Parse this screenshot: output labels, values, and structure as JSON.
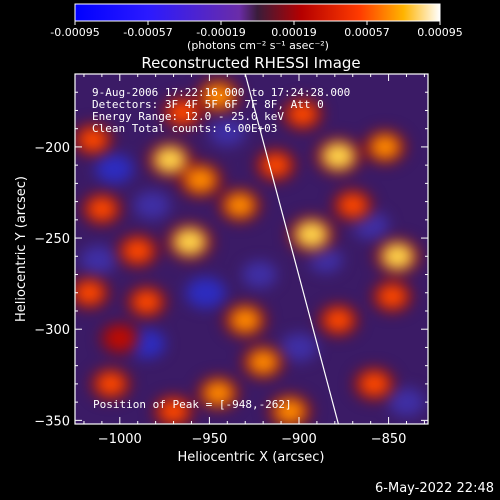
{
  "chart_data": {
    "type": "heatmap",
    "title": "Reconstructed RHESSI Image",
    "xlabel": "Heliocentric X (arcsec)",
    "ylabel": "Heliocentric Y (arcsec)",
    "xlim": [
      -1025,
      -828
    ],
    "ylim": [
      -352,
      -160
    ],
    "xticks": [
      -1000,
      -950,
      -900,
      -850
    ],
    "yticks": [
      -200,
      -250,
      -300,
      -350
    ],
    "colorbar": {
      "ticks": [
        "-0.00095",
        "-0.00057",
        "-0.00019",
        "0.00019",
        "0.00057",
        "0.00095"
      ],
      "unit_label": "(photons cm⁻² s⁻¹ asec⁻²)",
      "range": [
        -0.00095,
        0.00095
      ]
    },
    "annotations": [
      " 9-Aug-2006 17:22:16.000 to 17:24:28.000",
      "Detectors: 3F 4F 5F 6F 7F 8F, Att 0",
      "Energy Range: 12.0 - 25.0 keV",
      "Clean    Total counts: 6.00E+03"
    ],
    "peak_label": "Position of Peak = [-948,-262]",
    "limb_line": {
      "x": [
        -930,
        -878
      ],
      "y": [
        -160,
        -352
      ]
    },
    "hotspots": [
      {
        "x": -1015,
        "y": -196,
        "value": 0.0006
      },
      {
        "x": -965,
        "y": -181,
        "value": 0.0006
      },
      {
        "x": -945,
        "y": -172,
        "value": 0.00075
      },
      {
        "x": -972,
        "y": -207,
        "value": 0.00085
      },
      {
        "x": -955,
        "y": -218,
        "value": 0.0008
      },
      {
        "x": -1010,
        "y": -234,
        "value": 0.0006
      },
      {
        "x": -990,
        "y": -257,
        "value": 0.00065
      },
      {
        "x": -961,
        "y": -252,
        "value": 0.0009
      },
      {
        "x": -933,
        "y": -232,
        "value": 0.0007
      },
      {
        "x": -913,
        "y": -210,
        "value": 0.0006
      },
      {
        "x": -878,
        "y": -205,
        "value": 0.0009
      },
      {
        "x": -852,
        "y": -200,
        "value": 0.0007
      },
      {
        "x": -893,
        "y": -248,
        "value": 0.0009
      },
      {
        "x": -845,
        "y": -260,
        "value": 0.00085
      },
      {
        "x": -898,
        "y": -182,
        "value": 0.0006
      },
      {
        "x": -1017,
        "y": -280,
        "value": 0.0006
      },
      {
        "x": -985,
        "y": -285,
        "value": 0.0006
      },
      {
        "x": -930,
        "y": -295,
        "value": 0.00075
      },
      {
        "x": -920,
        "y": -318,
        "value": 0.0007
      },
      {
        "x": -905,
        "y": -345,
        "value": 0.00075
      },
      {
        "x": -945,
        "y": -335,
        "value": 0.0007
      },
      {
        "x": -1005,
        "y": -330,
        "value": 0.0006
      },
      {
        "x": -970,
        "y": -345,
        "value": 0.0006
      },
      {
        "x": -878,
        "y": -295,
        "value": 0.0006
      },
      {
        "x": -858,
        "y": -330,
        "value": 0.00065
      },
      {
        "x": -848,
        "y": -282,
        "value": 0.0006
      },
      {
        "x": -1000,
        "y": -305,
        "value": 0.0005
      },
      {
        "x": -870,
        "y": -232,
        "value": 0.0006
      }
    ],
    "coldspots": [
      {
        "x": -1003,
        "y": -212,
        "value": -0.0006
      },
      {
        "x": -982,
        "y": -232,
        "value": -0.0005
      },
      {
        "x": -952,
        "y": -280,
        "value": -0.0007
      },
      {
        "x": -985,
        "y": -308,
        "value": -0.00055
      },
      {
        "x": -900,
        "y": -310,
        "value": -0.0005
      },
      {
        "x": -860,
        "y": -243,
        "value": -0.0005
      },
      {
        "x": -922,
        "y": -270,
        "value": -0.0004
      },
      {
        "x": -1012,
        "y": -262,
        "value": -0.0005
      },
      {
        "x": -940,
        "y": -192,
        "value": -0.0005
      },
      {
        "x": -840,
        "y": -340,
        "value": -0.0005
      },
      {
        "x": -885,
        "y": -262,
        "value": -0.0003
      }
    ]
  },
  "footer": {
    "timestamp": "6-May-2022 22:48"
  }
}
